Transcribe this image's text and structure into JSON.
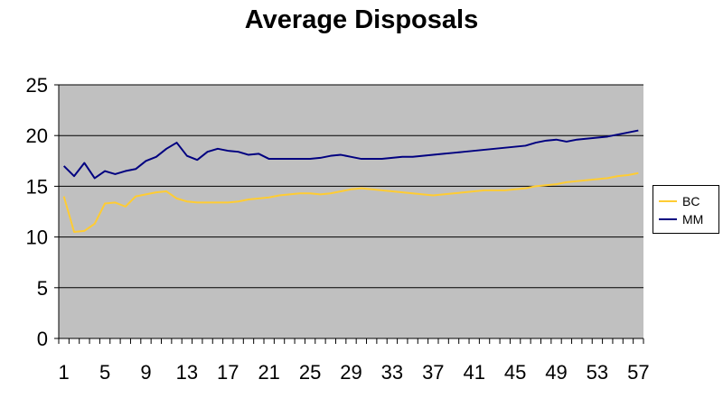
{
  "chart_data": {
    "type": "line",
    "title": "Average Disposals",
    "xlabel": "",
    "ylabel": "",
    "x": [
      1,
      2,
      3,
      4,
      5,
      6,
      7,
      8,
      9,
      10,
      11,
      12,
      13,
      14,
      15,
      16,
      17,
      18,
      19,
      20,
      21,
      22,
      23,
      24,
      25,
      26,
      27,
      28,
      29,
      30,
      31,
      32,
      33,
      34,
      35,
      36,
      37,
      38,
      39,
      40,
      41,
      42,
      43,
      44,
      45,
      46,
      47,
      48,
      49,
      50,
      51,
      52,
      53,
      54,
      55,
      56,
      57
    ],
    "x_tick_labels": [
      "1",
      "5",
      "9",
      "13",
      "17",
      "21",
      "25",
      "29",
      "33",
      "37",
      "41",
      "45",
      "49",
      "53",
      "57"
    ],
    "ylim": [
      0,
      25
    ],
    "y_ticks": [
      "0",
      "5",
      "10",
      "15",
      "20",
      "25"
    ],
    "grid": true,
    "legend_position": "right",
    "plot_background": "#c0c0c0",
    "series": [
      {
        "name": "BC",
        "color": "#ffcc33",
        "values": [
          14.0,
          10.5,
          10.6,
          11.3,
          13.3,
          13.4,
          13.0,
          14.0,
          14.2,
          14.4,
          14.5,
          13.8,
          13.5,
          13.4,
          13.4,
          13.4,
          13.4,
          13.5,
          13.7,
          13.8,
          13.9,
          14.1,
          14.2,
          14.3,
          14.3,
          14.2,
          14.3,
          14.5,
          14.7,
          14.8,
          14.7,
          14.6,
          14.5,
          14.4,
          14.3,
          14.2,
          14.1,
          14.2,
          14.3,
          14.4,
          14.5,
          14.6,
          14.6,
          14.6,
          14.7,
          14.8,
          15.0,
          15.1,
          15.2,
          15.4,
          15.5,
          15.6,
          15.7,
          15.8,
          16.0,
          16.1,
          16.3
        ]
      },
      {
        "name": "MM",
        "color": "#000080",
        "values": [
          17.0,
          16.0,
          17.3,
          15.8,
          16.5,
          16.2,
          16.5,
          16.7,
          17.5,
          17.9,
          18.7,
          19.3,
          18.0,
          17.6,
          18.4,
          18.7,
          18.5,
          18.4,
          18.1,
          18.2,
          17.7,
          17.7,
          17.7,
          17.7,
          17.7,
          17.8,
          18.0,
          18.1,
          17.9,
          17.7,
          17.7,
          17.7,
          17.8,
          17.9,
          17.9,
          18.0,
          18.1,
          18.2,
          18.3,
          18.4,
          18.5,
          18.6,
          18.7,
          18.8,
          18.9,
          19.0,
          19.3,
          19.5,
          19.6,
          19.4,
          19.6,
          19.7,
          19.8,
          19.9,
          20.1,
          20.3,
          20.5
        ]
      }
    ]
  }
}
